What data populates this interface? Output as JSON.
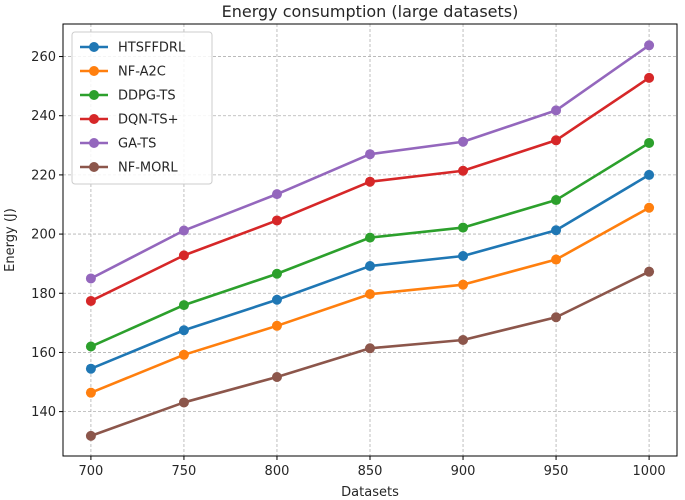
{
  "chart_data": {
    "type": "line",
    "title": "Energy consumption (large datasets)",
    "xlabel": "Datasets",
    "ylabel": "Energy (J)",
    "x": [
      700,
      750,
      800,
      850,
      900,
      950,
      1000
    ],
    "xticks": [
      "700",
      "750",
      "800",
      "850",
      "900",
      "950",
      "1000"
    ],
    "yticks": [
      140,
      160,
      180,
      200,
      220,
      240,
      260
    ],
    "xlim": [
      685,
      1015
    ],
    "ylim": [
      125,
      271
    ],
    "grid": true,
    "legend_position": "top-left",
    "series": [
      {
        "name": "HTSFFDRL",
        "color": "#1f77b4",
        "values": [
          154.5,
          167.5,
          177.8,
          189.2,
          192.6,
          201.3,
          220.0
        ]
      },
      {
        "name": "NF-A2C",
        "color": "#ff7f0e",
        "values": [
          146.4,
          159.2,
          169.0,
          179.7,
          182.9,
          191.4,
          208.9
        ]
      },
      {
        "name": "DDPG-TS",
        "color": "#2ca02c",
        "values": [
          162.0,
          176.0,
          186.6,
          198.8,
          202.2,
          211.5,
          230.8
        ]
      },
      {
        "name": "DQN-TS+",
        "color": "#d62728",
        "values": [
          177.4,
          192.8,
          204.6,
          217.7,
          221.4,
          231.7,
          252.8
        ]
      },
      {
        "name": "GA-TS",
        "color": "#9467bd",
        "values": [
          185.0,
          201.2,
          213.5,
          227.0,
          231.2,
          241.8,
          263.8
        ]
      },
      {
        "name": "NF-MORL",
        "color": "#8c564b",
        "values": [
          131.8,
          143.1,
          151.7,
          161.4,
          164.2,
          171.9,
          187.3
        ]
      }
    ]
  }
}
